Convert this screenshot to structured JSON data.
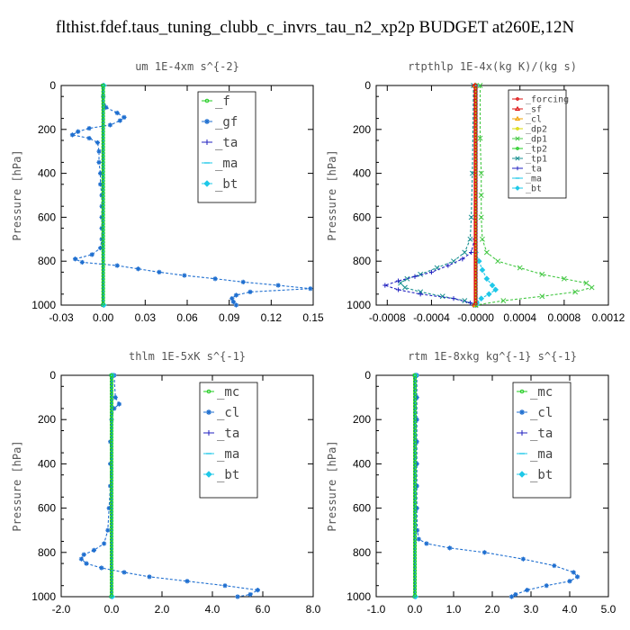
{
  "title": "flthist.fdef.taus_tuning_clubb_c_invrs_tau_n2_xp2p  BUDGET at260E,12N",
  "colors": {
    "green": "#22cc22",
    "blue": "#1f6fd0",
    "navy": "#2020c0",
    "cyan": "#1ec8e8",
    "red": "#dd1111",
    "orange": "#f0a000",
    "yellow": "#d8d800",
    "lime": "#44c844",
    "teal": "#189090",
    "grey": "#999999"
  },
  "chart_data": [
    {
      "type": "line",
      "title": "um  1E-4xm s^{-2}",
      "xlabel": "",
      "ylabel": "Pressure [hPa]",
      "xlim": [
        -0.03,
        0.15
      ],
      "ylim": [
        1000,
        0
      ],
      "xticks": [
        -0.03,
        0.0,
        0.03,
        0.06,
        0.09,
        0.12,
        0.15
      ],
      "xtick_labels": [
        "-0.03",
        "0.00",
        "0.03",
        "0.06",
        "0.09",
        "0.12",
        "0.15"
      ],
      "yticks": [
        0,
        200,
        400,
        600,
        800,
        1000
      ],
      "ytick_labels": [
        "0",
        "200",
        "400",
        "600",
        "800",
        "1000"
      ],
      "legend_position": "top-right",
      "series": [
        {
          "name": "_f",
          "color": "#22cc22",
          "marker": "circle",
          "y": [
            0,
            1000
          ],
          "x": [
            0,
            0
          ]
        },
        {
          "name": "_gf",
          "color": "#1f6fd0",
          "marker": "star",
          "y": [
            0,
            50,
            100,
            125,
            145,
            160,
            180,
            195,
            210,
            225,
            240,
            260,
            300,
            350,
            400,
            450,
            500,
            550,
            600,
            650,
            700,
            740,
            770,
            790,
            805,
            820,
            835,
            850,
            865,
            880,
            895,
            910,
            925,
            940,
            955,
            970,
            985,
            1000
          ],
          "x": [
            0.0,
            0.0,
            0.002,
            0.01,
            0.015,
            0.012,
            0.005,
            -0.01,
            -0.018,
            -0.022,
            -0.01,
            -0.004,
            -0.003,
            -0.003,
            -0.002,
            -0.002,
            -0.001,
            -0.001,
            -0.001,
            -0.001,
            -0.001,
            -0.002,
            -0.008,
            -0.02,
            -0.015,
            0.01,
            0.025,
            0.04,
            0.058,
            0.08,
            0.1,
            0.125,
            0.148,
            0.105,
            0.095,
            0.092,
            0.093,
            0.095
          ]
        },
        {
          "name": "_ta",
          "color": "#2020c0",
          "marker": "plus",
          "y": [
            0,
            1000
          ],
          "x": [
            0,
            0
          ]
        },
        {
          "name": "_ma",
          "color": "#1ec8e8",
          "marker": "dash",
          "y": [
            0,
            1000
          ],
          "x": [
            0,
            0
          ]
        },
        {
          "name": "_bt",
          "color": "#1ec8e8",
          "marker": "diamond",
          "y": [
            0,
            1000
          ],
          "x": [
            0,
            0
          ]
        }
      ]
    },
    {
      "type": "line",
      "title": "rtpthlp  1E-4x(kg K)/(kg s)",
      "xlabel": "",
      "ylabel": "Pressure [hPa]",
      "xlim": [
        -0.0009,
        0.0012
      ],
      "ylim": [
        1000,
        0
      ],
      "xticks": [
        -0.0008,
        -0.0004,
        0.0,
        0.0004,
        0.0008,
        0.0012
      ],
      "xtick_labels": [
        "-0.0008",
        "-0.0004",
        "-0.0000",
        "0.0004",
        "0.0008",
        "0.0012"
      ],
      "yticks": [
        0,
        200,
        400,
        600,
        800,
        1000
      ],
      "ytick_labels": [
        "0",
        "200",
        "400",
        "600",
        "800",
        "1000"
      ],
      "legend_position": "top-right",
      "series": [
        {
          "name": "_forcing",
          "color": "#dd1111",
          "marker": "circle",
          "y": [
            0,
            1000
          ],
          "x": [
            0,
            0
          ]
        },
        {
          "name": "_sf",
          "color": "#dd1111",
          "marker": "tri",
          "y": [
            0,
            1000
          ],
          "x": [
            0,
            0
          ]
        },
        {
          "name": "_cl",
          "color": "#f0a000",
          "marker": "tri",
          "y": [
            0,
            1000
          ],
          "x": [
            0,
            0
          ]
        },
        {
          "name": "_dp2",
          "color": "#d8d800",
          "marker": "circle",
          "y": [
            0,
            1000
          ],
          "x": [
            0,
            0
          ]
        },
        {
          "name": "_dp1",
          "color": "#44c844",
          "marker": "x",
          "y": [
            0,
            240,
            400,
            500,
            600,
            700,
            760,
            800,
            830,
            860,
            880,
            900,
            920,
            940,
            960,
            980,
            1000
          ],
          "x": [
            4e-05,
            4e-05,
            5e-05,
            5e-05,
            5e-05,
            6e-05,
            0.0001,
            0.0002,
            0.0004,
            0.0006,
            0.0008,
            0.001,
            0.00105,
            0.0009,
            0.0006,
            0.00025,
            0.0
          ]
        },
        {
          "name": "_tp2",
          "color": "#22cc22",
          "marker": "circle",
          "y": [
            0,
            1000
          ],
          "x": [
            0,
            0
          ]
        },
        {
          "name": "_tp1",
          "color": "#189090",
          "marker": "x",
          "y": [
            0,
            400,
            600,
            700,
            760,
            800,
            830,
            860,
            880,
            900,
            920,
            940,
            960,
            980,
            1000
          ],
          "x": [
            -2e-05,
            -3e-05,
            -4e-05,
            -5e-05,
            -0.0001,
            -0.0002,
            -0.00035,
            -0.0005,
            -0.00062,
            -0.00068,
            -0.00064,
            -0.0005,
            -0.0003,
            -0.0001,
            0.0
          ]
        },
        {
          "name": "_ta",
          "color": "#2020c0",
          "marker": "plus",
          "y": [
            0,
            700,
            760,
            790,
            820,
            850,
            870,
            890,
            910,
            930,
            950,
            970,
            990,
            1000
          ],
          "x": [
            0.0,
            -1e-05,
            -4e-05,
            -0.00012,
            -0.00025,
            -0.0004,
            -0.00055,
            -0.0007,
            -0.00082,
            -0.0007,
            -0.0005,
            -0.0002,
            -5e-05,
            0.0
          ]
        },
        {
          "name": "_ma",
          "color": "#1ec8e8",
          "marker": "dash",
          "y": [
            0,
            1000
          ],
          "x": [
            0,
            0
          ]
        },
        {
          "name": "_bt",
          "color": "#1ec8e8",
          "marker": "diamond",
          "y": [
            0,
            760,
            800,
            840,
            880,
            910,
            930,
            950,
            970,
            990,
            1000
          ],
          "x": [
            0.0,
            0.0,
            3e-05,
            6e-05,
            0.0001,
            0.00015,
            0.00018,
            0.00012,
            5e-05,
            1e-05,
            0.0
          ]
        }
      ]
    },
    {
      "type": "line",
      "title": "thlm  1E-5xK s^{-1}",
      "xlabel": "",
      "ylabel": "Pressure [hPa]",
      "xlim": [
        -2.0,
        8.0
      ],
      "ylim": [
        1000,
        0
      ],
      "xticks": [
        -2.0,
        0.0,
        2.0,
        4.0,
        6.0,
        8.0
      ],
      "xtick_labels": [
        "-2.0",
        "0.0",
        "2.0",
        "4.0",
        "6.0",
        "8.0"
      ],
      "yticks": [
        0,
        200,
        400,
        600,
        800,
        1000
      ],
      "ytick_labels": [
        "0",
        "200",
        "400",
        "600",
        "800",
        "1000"
      ],
      "legend_position": "top-right",
      "series": [
        {
          "name": "_mc",
          "color": "#22cc22",
          "marker": "circle",
          "y": [
            0,
            1000
          ],
          "x": [
            0,
            0
          ]
        },
        {
          "name": "_cl",
          "color": "#1f6fd0",
          "marker": "star",
          "y": [
            0,
            100,
            130,
            150,
            200,
            300,
            400,
            500,
            600,
            700,
            760,
            790,
            810,
            830,
            850,
            870,
            890,
            910,
            930,
            950,
            970,
            990,
            1000
          ],
          "x": [
            0.1,
            0.15,
            0.3,
            0.1,
            0.0,
            -0.05,
            -0.05,
            -0.05,
            -0.1,
            -0.15,
            -0.3,
            -0.7,
            -1.1,
            -1.2,
            -1.0,
            -0.4,
            0.5,
            1.5,
            3.0,
            4.5,
            5.8,
            5.5,
            5.0
          ]
        },
        {
          "name": "_ta",
          "color": "#2020c0",
          "marker": "plus",
          "y": [
            0,
            1000
          ],
          "x": [
            0,
            0
          ]
        },
        {
          "name": "_ma",
          "color": "#1ec8e8",
          "marker": "dash",
          "y": [
            0,
            1000
          ],
          "x": [
            0,
            0
          ]
        },
        {
          "name": "_bt",
          "color": "#1ec8e8",
          "marker": "diamond",
          "y": [
            0,
            1000
          ],
          "x": [
            0,
            0
          ]
        }
      ]
    },
    {
      "type": "line",
      "title": "rtm  1E-8xkg kg^{-1} s^{-1}",
      "xlabel": "",
      "ylabel": "Pressure [hPa]",
      "xlim": [
        -1.0,
        5.0
      ],
      "ylim": [
        1000,
        0
      ],
      "xticks": [
        -1.0,
        0.0,
        1.0,
        2.0,
        3.0,
        4.0,
        5.0
      ],
      "xtick_labels": [
        "-1.0",
        "0.0",
        "1.0",
        "2.0",
        "3.0",
        "4.0",
        "5.0"
      ],
      "yticks": [
        0,
        200,
        400,
        600,
        800,
        1000
      ],
      "ytick_labels": [
        "0",
        "200",
        "400",
        "600",
        "800",
        "1000"
      ],
      "legend_position": "top-right",
      "series": [
        {
          "name": "_mc",
          "color": "#22cc22",
          "marker": "circle",
          "y": [
            0,
            1000
          ],
          "x": [
            0,
            0
          ]
        },
        {
          "name": "_cl",
          "color": "#1f6fd0",
          "marker": "star",
          "y": [
            0,
            100,
            200,
            300,
            400,
            500,
            600,
            700,
            740,
            760,
            780,
            800,
            830,
            860,
            890,
            910,
            930,
            950,
            970,
            990,
            1000
          ],
          "x": [
            0.05,
            0.05,
            0.05,
            0.05,
            0.05,
            0.05,
            0.05,
            0.06,
            0.1,
            0.3,
            0.9,
            1.8,
            2.8,
            3.6,
            4.1,
            4.2,
            4.0,
            3.4,
            2.9,
            2.6,
            2.5
          ]
        },
        {
          "name": "_ta",
          "color": "#2020c0",
          "marker": "plus",
          "y": [
            0,
            1000
          ],
          "x": [
            0,
            0
          ]
        },
        {
          "name": "_ma",
          "color": "#1ec8e8",
          "marker": "dash",
          "y": [
            0,
            1000
          ],
          "x": [
            0,
            0
          ]
        },
        {
          "name": "_bt",
          "color": "#1ec8e8",
          "marker": "diamond",
          "y": [
            0,
            1000
          ],
          "x": [
            0,
            0
          ]
        }
      ]
    }
  ]
}
